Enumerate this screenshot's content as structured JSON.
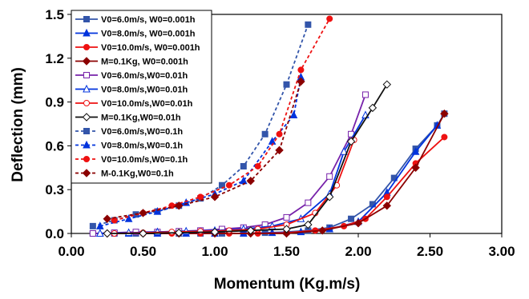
{
  "chart_data": {
    "type": "line",
    "xlabel": "Momentum (Kg.m/s)",
    "ylabel": "Deflection (mm)",
    "xlim": [
      0,
      3
    ],
    "ylim": [
      0,
      1.5
    ],
    "x_ticks": [
      "0.00",
      "0.50",
      "1.00",
      "1.50",
      "2.00",
      "2.50",
      "3.00"
    ],
    "y_ticks": [
      "0.0",
      "0.3",
      "0.6",
      "0.9",
      "1.2",
      "1.5"
    ],
    "legend_position": "top-left",
    "grid": false,
    "series": [
      {
        "name": "V0=6.0m/s, W0=0.001h",
        "color": "#3355aa",
        "marker": "square-filled",
        "dash": false,
        "x": [
          0.15,
          0.3,
          0.45,
          0.6,
          0.75,
          0.9,
          1.05,
          1.2,
          1.35,
          1.5,
          1.65,
          1.8,
          1.95,
          2.1,
          2.25,
          2.4,
          2.55,
          2.6
        ],
        "y": [
          0.0,
          0.0,
          0.0,
          0.0,
          0.0,
          0.0,
          0.0,
          0.0,
          0.005,
          0.01,
          0.02,
          0.04,
          0.1,
          0.2,
          0.38,
          0.58,
          0.74,
          0.82
        ]
      },
      {
        "name": "V0=8.0m/s, W0=0.001h",
        "color": "#0033dd",
        "marker": "triangle-filled",
        "dash": false,
        "x": [
          0.2,
          0.4,
          0.6,
          0.8,
          1.0,
          1.2,
          1.4,
          1.6,
          1.8,
          2.0,
          2.2,
          2.4,
          2.55
        ],
        "y": [
          0.0,
          0.0,
          0.0,
          0.0,
          0.0,
          0.0,
          0.005,
          0.01,
          0.03,
          0.08,
          0.28,
          0.56,
          0.74
        ]
      },
      {
        "name": "V0=10.0m/s, W0=0.001h",
        "color": "#ee1111",
        "marker": "circle-filled",
        "dash": false,
        "x": [
          0.3,
          0.5,
          0.7,
          0.9,
          1.1,
          1.3,
          1.5,
          1.7,
          1.9,
          2.05,
          2.2,
          2.4,
          2.6
        ],
        "y": [
          0.0,
          0.0,
          0.0,
          0.0,
          0.0,
          0.0,
          0.005,
          0.02,
          0.05,
          0.1,
          0.25,
          0.48,
          0.66
        ]
      },
      {
        "name": "M=0.1Kg, W0=0.001h",
        "color": "#8b0000",
        "marker": "diamond-filled",
        "dash": false,
        "x": [
          0.25,
          0.5,
          0.75,
          1.0,
          1.25,
          1.5,
          1.75,
          2.0,
          2.2,
          2.4,
          2.6
        ],
        "y": [
          0.0,
          0.0,
          0.0,
          0.0,
          0.0,
          0.0,
          0.02,
          0.07,
          0.19,
          0.45,
          0.82
        ]
      },
      {
        "name": "V0=6.0m/s,W0=0.01h",
        "color": "#7722aa",
        "marker": "square-open",
        "dash": false,
        "x": [
          0.15,
          0.3,
          0.45,
          0.6,
          0.75,
          0.9,
          1.05,
          1.2,
          1.35,
          1.5,
          1.65,
          1.8,
          1.95,
          2.05
        ],
        "y": [
          0.0,
          0.005,
          0.01,
          0.01,
          0.015,
          0.02,
          0.03,
          0.04,
          0.06,
          0.11,
          0.21,
          0.39,
          0.68,
          0.95
        ]
      },
      {
        "name": "V0=8.0m/s,W0=0.01h",
        "color": "#0033dd",
        "marker": "triangle-open",
        "dash": false,
        "x": [
          0.2,
          0.4,
          0.6,
          0.8,
          1.0,
          1.2,
          1.4,
          1.6,
          1.8,
          1.9,
          2.05
        ],
        "y": [
          0.0,
          0.005,
          0.01,
          0.015,
          0.02,
          0.03,
          0.05,
          0.1,
          0.27,
          0.56,
          0.81
        ]
      },
      {
        "name": "V0=10.0m/s,W0=0.01h",
        "color": "#ee1111",
        "marker": "circle-open",
        "dash": false,
        "x": [
          0.3,
          0.5,
          0.7,
          0.9,
          1.1,
          1.3,
          1.5,
          1.7,
          1.85,
          1.97
        ],
        "y": [
          0.0,
          0.005,
          0.01,
          0.015,
          0.02,
          0.03,
          0.06,
          0.14,
          0.33,
          0.64
        ]
      },
      {
        "name": "M=0.1Kg,W0=0.01h",
        "color": "#111111",
        "marker": "diamond-open",
        "dash": false,
        "x": [
          0.25,
          0.5,
          0.75,
          1.0,
          1.25,
          1.5,
          1.65,
          1.8,
          1.95,
          2.1,
          2.2
        ],
        "y": [
          0.0,
          0.0,
          0.005,
          0.01,
          0.02,
          0.03,
          0.06,
          0.25,
          0.63,
          0.86,
          1.02
        ]
      },
      {
        "name": "V0=6.0m/s,W0=0.1h",
        "color": "#3355aa",
        "marker": "square-filled",
        "dash": true,
        "x": [
          0.15,
          0.3,
          0.45,
          0.6,
          0.75,
          0.9,
          1.05,
          1.2,
          1.35,
          1.5,
          1.65
        ],
        "y": [
          0.05,
          0.09,
          0.13,
          0.15,
          0.19,
          0.24,
          0.33,
          0.46,
          0.68,
          1.02,
          1.43
        ]
      },
      {
        "name": "V0=8.0m/s,W0=0.1h",
        "color": "#0033dd",
        "marker": "triangle-filled",
        "dash": true,
        "x": [
          0.2,
          0.4,
          0.6,
          0.8,
          1.0,
          1.2,
          1.4,
          1.55,
          1.6
        ],
        "y": [
          0.05,
          0.1,
          0.15,
          0.21,
          0.27,
          0.36,
          0.63,
          0.81,
          1.07
        ]
      },
      {
        "name": "V0=10.0m/s,W0=0.1h",
        "color": "#ee1111",
        "marker": "circle-filled",
        "dash": true,
        "x": [
          0.3,
          0.5,
          0.7,
          0.9,
          1.1,
          1.3,
          1.45,
          1.6,
          1.8
        ],
        "y": [
          0.09,
          0.14,
          0.19,
          0.25,
          0.33,
          0.46,
          0.68,
          1.12,
          1.47
        ]
      },
      {
        "name": "M-0.1Kg,W0=0.1h",
        "color": "#8b0000",
        "marker": "diamond-filled",
        "dash": true,
        "x": [
          0.25,
          0.5,
          0.75,
          1.0,
          1.25,
          1.45,
          1.6
        ],
        "y": [
          0.1,
          0.14,
          0.19,
          0.25,
          0.36,
          0.57,
          1.04
        ]
      }
    ]
  }
}
